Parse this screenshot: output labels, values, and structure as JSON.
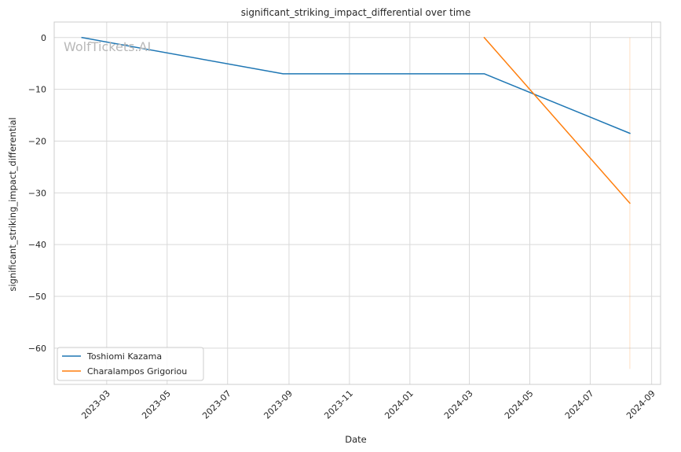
{
  "chart_data": {
    "type": "line",
    "title": "significant_striking_impact_differential over time",
    "xlabel": "Date",
    "ylabel": "significant_striking_impact_differential",
    "xlim": [
      "2023-01-07",
      "2024-09-10"
    ],
    "ylim": [
      -67,
      3
    ],
    "x_ticks": [
      "2023-03",
      "2023-05",
      "2023-07",
      "2023-09",
      "2023-11",
      "2024-01",
      "2024-03",
      "2024-05",
      "2024-07",
      "2024-09"
    ],
    "y_ticks": [
      0,
      -10,
      -20,
      -30,
      -40,
      -50,
      -60
    ],
    "y_tick_labels": [
      "0",
      "−10",
      "−20",
      "−30",
      "−40",
      "−50",
      "−60"
    ],
    "grid": true,
    "legend_position": "lower-left",
    "series": [
      {
        "name": "Toshiomi Kazama",
        "color": "#1f77b4",
        "x": [
          "2023-02-04",
          "2023-08-26",
          "2024-03-16",
          "2024-08-10"
        ],
        "y": [
          0,
          -7,
          -7,
          -18.5
        ]
      },
      {
        "name": "Charalampos Grigoriou",
        "color": "#ff7f0e",
        "x": [
          "2024-03-16",
          "2024-08-10"
        ],
        "y": [
          0,
          -32
        ]
      }
    ],
    "annotations": [
      {
        "type": "vertical-line",
        "x": "2024-08-10",
        "y_from": 0,
        "y_to": -64,
        "color": "#ff7f0e"
      }
    ],
    "watermark": "WolfTickets.AI"
  }
}
